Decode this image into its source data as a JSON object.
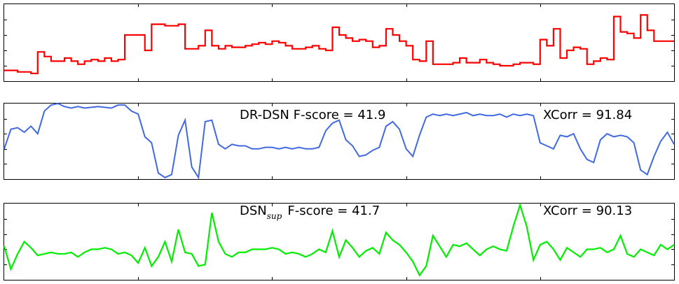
{
  "chart_data": [
    {
      "type": "line",
      "step": true,
      "color": "#ff0000",
      "ylim": [
        0,
        1
      ],
      "x": [
        0,
        1,
        2,
        3,
        4,
        5,
        6,
        7,
        8,
        9,
        10,
        11,
        12,
        13,
        14,
        15,
        16,
        17,
        18,
        19,
        20,
        21,
        22,
        23,
        24,
        25,
        26,
        27,
        28,
        29,
        30,
        31,
        32,
        33,
        34,
        35,
        36,
        37,
        38,
        39,
        40,
        41,
        42,
        43,
        44,
        45,
        46,
        47,
        48,
        49,
        50,
        51,
        52,
        53,
        54,
        55,
        56,
        57,
        58,
        59,
        60,
        61,
        62,
        63,
        64,
        65,
        66,
        67,
        68,
        69,
        70,
        71,
        72,
        73,
        74,
        75,
        76,
        77,
        78,
        79,
        80,
        81,
        82,
        83,
        84,
        85,
        86,
        87,
        88,
        89,
        90,
        91,
        92,
        93,
        94,
        95,
        96,
        97,
        98,
        99,
        100
      ],
      "series": [
        {
          "values": [
            0.14,
            0.14,
            0.12,
            0.12,
            0.1,
            0.38,
            0.32,
            0.26,
            0.26,
            0.3,
            0.26,
            0.22,
            0.26,
            0.28,
            0.26,
            0.3,
            0.26,
            0.28,
            0.6,
            0.6,
            0.6,
            0.4,
            0.74,
            0.74,
            0.72,
            0.72,
            0.74,
            0.42,
            0.42,
            0.46,
            0.66,
            0.46,
            0.42,
            0.46,
            0.44,
            0.44,
            0.46,
            0.48,
            0.5,
            0.48,
            0.52,
            0.5,
            0.46,
            0.42,
            0.42,
            0.44,
            0.46,
            0.42,
            0.4,
            0.7,
            0.6,
            0.56,
            0.52,
            0.54,
            0.52,
            0.44,
            0.46,
            0.68,
            0.6,
            0.52,
            0.46,
            0.28,
            0.26,
            0.52,
            0.22,
            0.22,
            0.22,
            0.24,
            0.3,
            0.24,
            0.24,
            0.28,
            0.24,
            0.22,
            0.2,
            0.2,
            0.22,
            0.24,
            0.24,
            0.22,
            0.54,
            0.46,
            0.68,
            0.3,
            0.4,
            0.44,
            0.42,
            0.22,
            0.26,
            0.3,
            0.28,
            0.84,
            0.64,
            0.62,
            0.56,
            0.86,
            0.66,
            0.52,
            0.52,
            0.52,
            0.52
          ]
        }
      ]
    },
    {
      "type": "line",
      "color": "#4169e1",
      "ylim": [
        0,
        1
      ],
      "annotation_left": "DR-DSN  F-score = 41.9",
      "annotation_right": "XCorr = 91.84",
      "x": [
        0,
        1,
        2,
        3,
        4,
        5,
        6,
        7,
        8,
        9,
        10,
        11,
        12,
        13,
        14,
        15,
        16,
        17,
        18,
        19,
        20,
        21,
        22,
        23,
        24,
        25,
        26,
        27,
        28,
        29,
        30,
        31,
        32,
        33,
        34,
        35,
        36,
        37,
        38,
        39,
        40,
        41,
        42,
        43,
        44,
        45,
        46,
        47,
        48,
        49,
        50,
        51,
        52,
        53,
        54,
        55,
        56,
        57,
        58,
        59,
        60,
        61,
        62,
        63,
        64,
        65,
        66,
        67,
        68,
        69,
        70,
        71,
        72,
        73,
        74,
        75,
        76,
        77,
        78,
        79,
        80,
        81,
        82,
        83,
        84,
        85,
        86,
        87,
        88,
        89,
        90,
        91,
        92,
        93,
        94,
        95,
        96,
        97,
        98,
        99,
        100
      ],
      "series": [
        {
          "values": [
            0.4,
            0.66,
            0.68,
            0.62,
            0.7,
            0.6,
            0.9,
            0.98,
            1.0,
            0.96,
            0.94,
            0.96,
            0.94,
            0.95,
            0.96,
            0.95,
            0.94,
            0.98,
            0.98,
            0.9,
            0.86,
            0.56,
            0.48,
            0.08,
            0.02,
            0.06,
            0.58,
            0.78,
            0.16,
            0.02,
            0.76,
            0.78,
            0.46,
            0.4,
            0.46,
            0.44,
            0.44,
            0.4,
            0.4,
            0.42,
            0.42,
            0.4,
            0.42,
            0.4,
            0.42,
            0.4,
            0.4,
            0.42,
            0.64,
            0.74,
            0.78,
            0.52,
            0.44,
            0.3,
            0.32,
            0.38,
            0.42,
            0.7,
            0.76,
            0.66,
            0.4,
            0.3,
            0.58,
            0.82,
            0.86,
            0.84,
            0.86,
            0.84,
            0.86,
            0.88,
            0.84,
            0.86,
            0.84,
            0.84,
            0.86,
            0.82,
            0.86,
            0.84,
            0.86,
            0.84,
            0.48,
            0.44,
            0.4,
            0.58,
            0.56,
            0.6,
            0.4,
            0.26,
            0.22,
            0.52,
            0.6,
            0.56,
            0.58,
            0.56,
            0.48,
            0.12,
            0.06,
            0.3,
            0.5,
            0.62,
            0.46
          ]
        }
      ]
    },
    {
      "type": "line",
      "color": "#00ee00",
      "ylim": [
        0,
        1
      ],
      "annotation_left_main": "DSN",
      "annotation_left_sub": "sup",
      "annotation_left_rest": "F-score = 41.7",
      "annotation_right": "XCorr = 90.13",
      "x": [
        0,
        1,
        2,
        3,
        4,
        5,
        6,
        7,
        8,
        9,
        10,
        11,
        12,
        13,
        14,
        15,
        16,
        17,
        18,
        19,
        20,
        21,
        22,
        23,
        24,
        25,
        26,
        27,
        28,
        29,
        30,
        31,
        32,
        33,
        34,
        35,
        36,
        37,
        38,
        39,
        40,
        41,
        42,
        43,
        44,
        45,
        46,
        47,
        48,
        49,
        50,
        51,
        52,
        53,
        54,
        55,
        56,
        57,
        58,
        59,
        60,
        61,
        62,
        63,
        64,
        65,
        66,
        67,
        68,
        69,
        70,
        71,
        72,
        73,
        74,
        75,
        76,
        77,
        78,
        79,
        80,
        81,
        82,
        83,
        84,
        85,
        86,
        87,
        88,
        89,
        90,
        91,
        92,
        93,
        94,
        95,
        96,
        97,
        98,
        99,
        100
      ],
      "series": [
        {
          "values": [
            0.44,
            0.14,
            0.34,
            0.5,
            0.42,
            0.32,
            0.34,
            0.36,
            0.34,
            0.34,
            0.36,
            0.3,
            0.36,
            0.4,
            0.4,
            0.42,
            0.4,
            0.34,
            0.36,
            0.32,
            0.22,
            0.42,
            0.18,
            0.3,
            0.5,
            0.24,
            0.66,
            0.36,
            0.34,
            0.18,
            0.2,
            0.88,
            0.5,
            0.34,
            0.3,
            0.36,
            0.36,
            0.4,
            0.4,
            0.4,
            0.42,
            0.4,
            0.34,
            0.36,
            0.34,
            0.3,
            0.34,
            0.4,
            0.36,
            0.64,
            0.3,
            0.52,
            0.42,
            0.3,
            0.38,
            0.42,
            0.34,
            0.62,
            0.52,
            0.46,
            0.36,
            0.24,
            0.06,
            0.18,
            0.58,
            0.44,
            0.3,
            0.46,
            0.44,
            0.48,
            0.4,
            0.32,
            0.4,
            0.44,
            0.4,
            0.38,
            0.7,
            0.98,
            0.7,
            0.26,
            0.46,
            0.5,
            0.4,
            0.26,
            0.42,
            0.36,
            0.3,
            0.4,
            0.4,
            0.42,
            0.36,
            0.4,
            0.58,
            0.34,
            0.3,
            0.4,
            0.36,
            0.32,
            0.46,
            0.4,
            0.46
          ]
        }
      ]
    }
  ]
}
